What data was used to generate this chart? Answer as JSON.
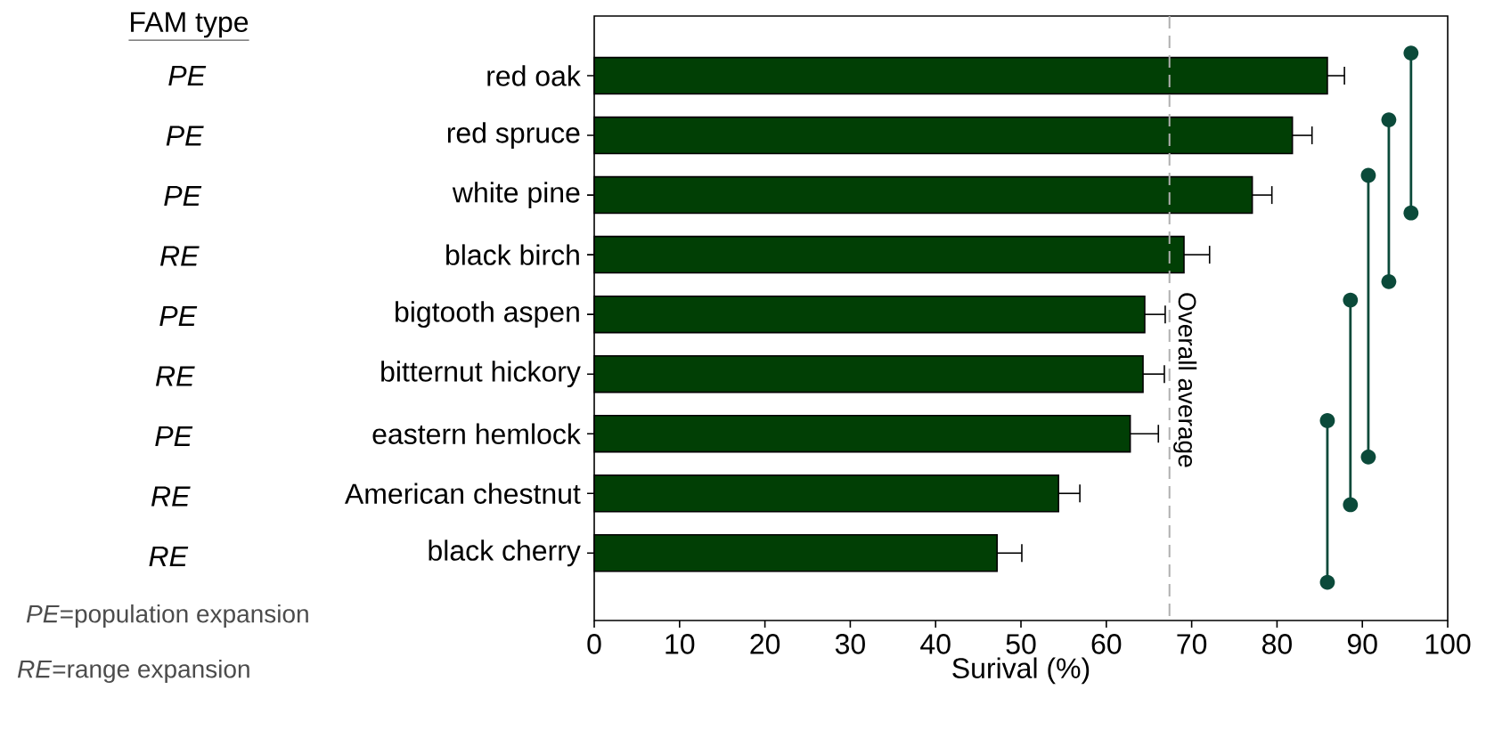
{
  "chart_data": {
    "type": "bar",
    "orientation": "horizontal",
    "categories": [
      "red oak",
      "red spruce",
      "white pine",
      "black birch",
      "bigtooth aspen",
      "bitternut hickory",
      "eastern hemlock",
      "American chestnut",
      "black cherry"
    ],
    "values": [
      85.9,
      81.8,
      77.1,
      69.1,
      64.5,
      64.3,
      62.8,
      54.4,
      47.2
    ],
    "errors": [
      2.0,
      2.3,
      2.3,
      3.0,
      2.4,
      2.5,
      3.3,
      2.5,
      2.9
    ],
    "color": "#013f05",
    "xlim": [
      0,
      100
    ],
    "xticks": [
      0,
      10,
      20,
      30,
      40,
      50,
      60,
      70,
      80,
      90,
      100
    ],
    "xlabel": "Surival (%)",
    "ref_lines": [
      {
        "axis": "x",
        "value": 67.4,
        "label": "Overall average",
        "color": "#b0b0b0",
        "line_style": "dashed"
      }
    ],
    "annotations": [
      "FAM type",
      "PE",
      "PE",
      "PE",
      "RE",
      "PE",
      "RE",
      "PE",
      "RE",
      "RE",
      "*PE*=population expansion",
      "*RE*=range expansion"
    ],
    "grid": false
  }
}
